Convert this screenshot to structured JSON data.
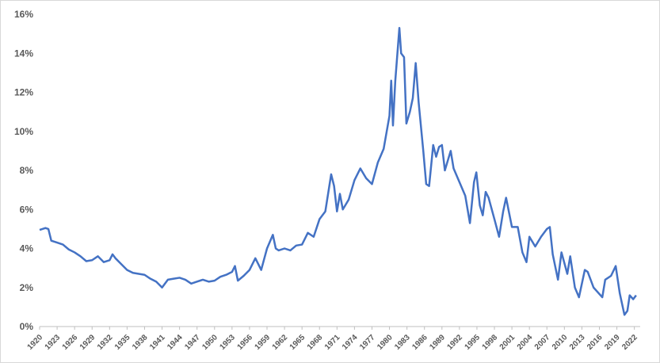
{
  "chart_data": {
    "type": "line",
    "x": [
      1920,
      1921,
      1921.5,
      1922,
      1923,
      1924,
      1925,
      1926,
      1927,
      1928,
      1929,
      1930,
      1931,
      1932,
      1932.5,
      1933,
      1934,
      1935,
      1936,
      1937,
      1938,
      1939,
      1940,
      1941,
      1942,
      1943,
      1944,
      1945,
      1946,
      1947,
      1948,
      1949,
      1950,
      1951,
      1952,
      1953,
      1953.5,
      1954,
      1955,
      1956,
      1957,
      1958,
      1959,
      1960,
      1960.5,
      1961,
      1962,
      1963,
      1964,
      1965,
      1966,
      1967,
      1968,
      1969,
      1970,
      1970.5,
      1971,
      1971.5,
      1972,
      1973,
      1974,
      1975,
      1976,
      1977,
      1978,
      1979,
      1980,
      1980.3,
      1980.6,
      1981,
      1981.7,
      1982,
      1982.5,
      1982.9,
      1983.5,
      1984,
      1984.5,
      1985,
      1985.8,
      1986.3,
      1986.8,
      1987.5,
      1988,
      1988.5,
      1989,
      1989.5,
      1990,
      1990.5,
      1991,
      1992,
      1993,
      1993.8,
      1994.5,
      1994.9,
      1995.5,
      1996,
      1996.5,
      1997,
      1998,
      1998.8,
      1999.5,
      2000,
      2001,
      2002,
      2002.8,
      2003.5,
      2004,
      2005,
      2006,
      2007,
      2007.5,
      2008,
      2008.9,
      2009.5,
      2010.5,
      2011,
      2011.8,
      2012.5,
      2013.5,
      2014,
      2015,
      2016.5,
      2017,
      2018,
      2018.8,
      2019.5,
      2020.3,
      2020.8,
      2021.2,
      2021.8,
      2022.3
    ],
    "series": [
      {
        "color": "#4472c4",
        "values": [
          4.95,
          5.05,
          5.0,
          4.4,
          4.3,
          4.2,
          3.95,
          3.8,
          3.6,
          3.35,
          3.4,
          3.6,
          3.3,
          3.4,
          3.7,
          3.5,
          3.2,
          2.9,
          2.75,
          2.7,
          2.65,
          2.45,
          2.3,
          2.0,
          2.4,
          2.45,
          2.5,
          2.4,
          2.2,
          2.3,
          2.4,
          2.3,
          2.35,
          2.55,
          2.65,
          2.8,
          3.1,
          2.35,
          2.6,
          2.9,
          3.5,
          2.9,
          4.0,
          4.7,
          4.0,
          3.9,
          4.0,
          3.9,
          4.15,
          4.2,
          4.8,
          4.6,
          5.5,
          5.9,
          7.8,
          7.2,
          5.9,
          6.8,
          6.0,
          6.5,
          7.5,
          8.1,
          7.6,
          7.3,
          8.4,
          9.1,
          10.8,
          12.6,
          10.3,
          12.6,
          15.3,
          14.0,
          13.8,
          10.4,
          11.0,
          11.7,
          13.5,
          11.5,
          9.0,
          7.3,
          7.2,
          9.3,
          8.7,
          9.2,
          9.3,
          8.0,
          8.5,
          9.0,
          8.1,
          7.4,
          6.7,
          5.3,
          7.4,
          7.9,
          6.2,
          5.7,
          6.9,
          6.6,
          5.5,
          4.6,
          5.9,
          6.6,
          5.1,
          5.1,
          3.8,
          3.3,
          4.6,
          4.1,
          4.6,
          5.0,
          5.1,
          3.7,
          2.4,
          3.8,
          2.7,
          3.6,
          2.0,
          1.5,
          2.9,
          2.8,
          2.0,
          1.5,
          2.4,
          2.6,
          3.1,
          1.7,
          0.6,
          0.8,
          1.6,
          1.4,
          1.6
        ]
      }
    ],
    "xlim": [
      1920,
      2023
    ],
    "xticks": [
      1920,
      1923,
      1926,
      1929,
      1932,
      1935,
      1938,
      1941,
      1944,
      1947,
      1950,
      1953,
      1956,
      1959,
      1962,
      1965,
      1968,
      1971,
      1974,
      1977,
      1980,
      1983,
      1986,
      1989,
      1992,
      1995,
      1998,
      2001,
      2004,
      2007,
      2010,
      2013,
      2016,
      2019,
      2022
    ],
    "ylim": [
      0,
      16
    ],
    "yticks": [
      {
        "value": 0,
        "label": "0%"
      },
      {
        "value": 2,
        "label": "2%"
      },
      {
        "value": 4,
        "label": "4%"
      },
      {
        "value": 6,
        "label": "6%"
      },
      {
        "value": 8,
        "label": "8%"
      },
      {
        "value": 10,
        "label": "10%"
      },
      {
        "value": 12,
        "label": "12%"
      },
      {
        "value": 14,
        "label": "14%"
      },
      {
        "value": 16,
        "label": "16%"
      }
    ],
    "grid": false
  }
}
